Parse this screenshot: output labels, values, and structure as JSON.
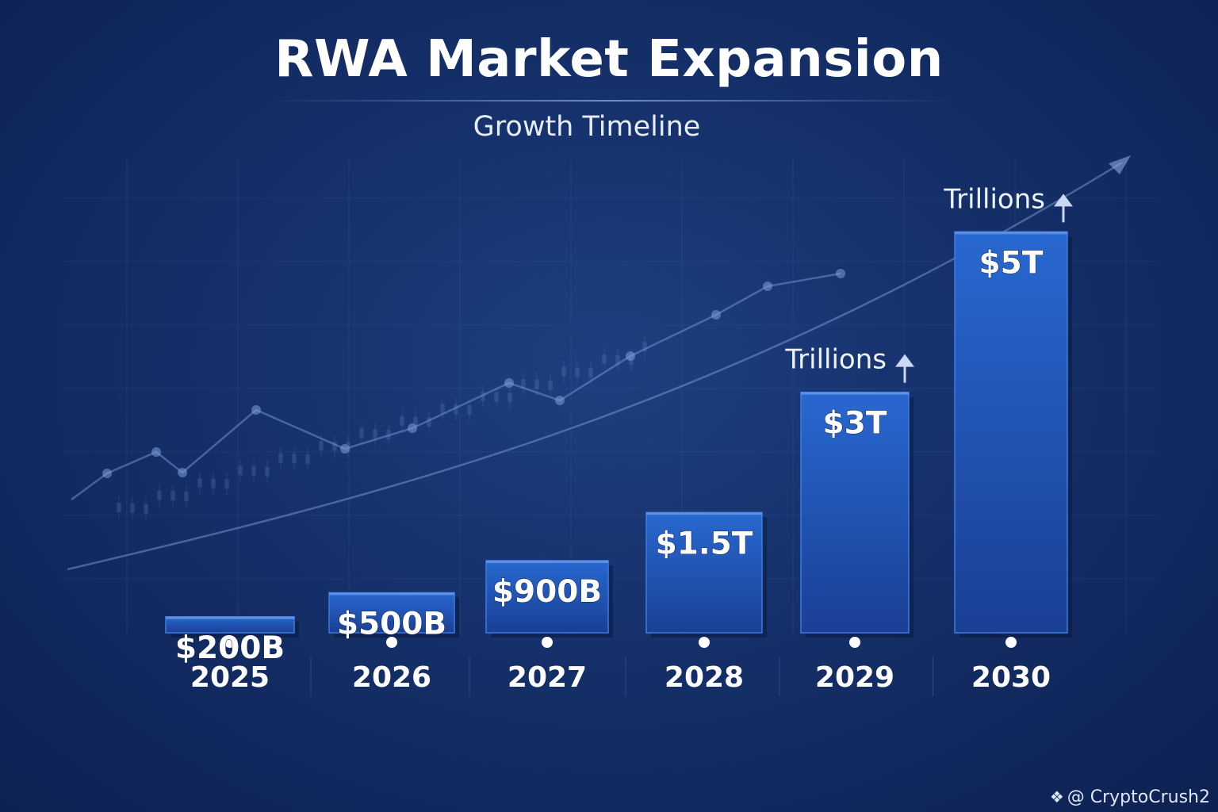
{
  "chart_data": {
    "type": "bar",
    "title": "RWA Market Expansion",
    "subtitle": "Growth Timeline",
    "categories": [
      "2025",
      "2026",
      "2027",
      "2028",
      "2029",
      "2030"
    ],
    "values": [
      0.2,
      0.5,
      0.9,
      1.5,
      3,
      5
    ],
    "value_unit": "trillion USD",
    "data_labels": [
      "$200B",
      "$500B",
      "$900B",
      "$1.5T",
      "$3T",
      "$5T"
    ],
    "annotations": [
      {
        "category": "2029",
        "text": "Trillions"
      },
      {
        "category": "2030",
        "text": "Trillions"
      }
    ],
    "xlabel": "",
    "ylabel": "",
    "ylim": [
      0,
      5.3
    ],
    "grid": true,
    "legend": "none",
    "colors": {
      "bar_top": "#2563c9",
      "bar_bottom": "#1a3f95",
      "background": "#15306a",
      "text": "#ffffff",
      "trend": "#7f9fd8"
    }
  },
  "watermark": {
    "text": "@ CryptoCrush2",
    "icon": "binance-diamond-icon"
  }
}
